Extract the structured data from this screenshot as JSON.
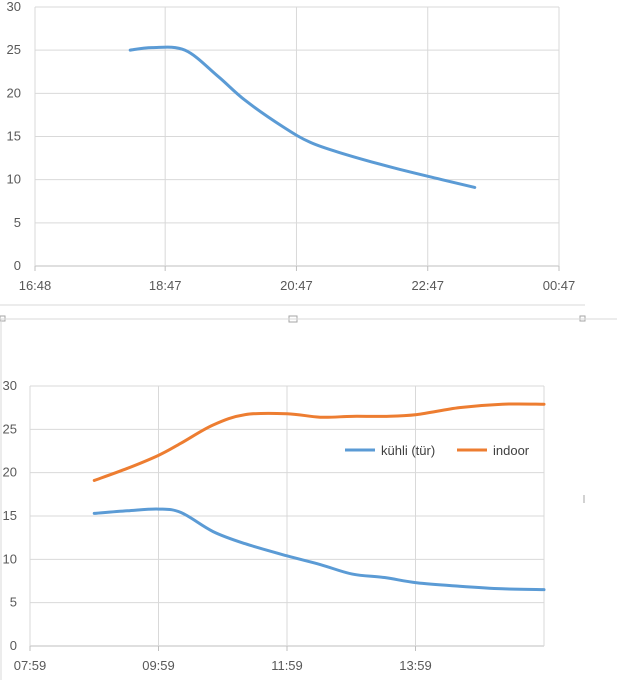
{
  "chart_data": [
    {
      "type": "line",
      "title": "",
      "xlabel": "",
      "ylabel": "",
      "x_axis": "time",
      "xlim": [
        "16:48",
        "00:47"
      ],
      "ylim": [
        0,
        30
      ],
      "y_ticks": [
        0,
        5,
        10,
        15,
        20,
        25,
        30
      ],
      "x_ticks": [
        "16:48",
        "18:47",
        "20:47",
        "22:47",
        "00:47"
      ],
      "grid": true,
      "legend": "none",
      "colors": [
        "#5b9bd5"
      ],
      "series": [
        {
          "x": [
            "18:15",
            "18:35",
            "19:05",
            "19:35",
            "20:00",
            "20:35",
            "21:00",
            "21:30",
            "22:15",
            "23:00",
            "23:30"
          ],
          "values": [
            25.0,
            25.3,
            25.0,
            22.0,
            19.2,
            16.1,
            14.3,
            13.0,
            11.4,
            10.0,
            9.1
          ]
        }
      ]
    },
    {
      "type": "line",
      "title": "",
      "xlabel": "",
      "ylabel": "",
      "x_axis": "time",
      "xlim": [
        "07:59",
        "15:59"
      ],
      "ylim": [
        0,
        30
      ],
      "y_ticks": [
        0,
        5,
        10,
        15,
        20,
        25,
        30
      ],
      "x_ticks": [
        "07:59",
        "09:59",
        "11:59",
        "13:59"
      ],
      "grid": true,
      "legend": "right",
      "colors": [
        "#5b9bd5",
        "#ed7d31"
      ],
      "series": [
        {
          "name": "kühli (tür)",
          "x": [
            "08:59",
            "09:30",
            "09:59",
            "10:20",
            "10:50",
            "11:20",
            "11:59",
            "12:30",
            "13:00",
            "13:30",
            "14:00",
            "14:40",
            "15:20",
            "15:59"
          ],
          "values": [
            15.3,
            15.6,
            15.8,
            15.4,
            13.2,
            11.8,
            10.4,
            9.4,
            8.3,
            7.9,
            7.3,
            6.9,
            6.6,
            6.5
          ]
        },
        {
          "name": "indoor",
          "x": [
            "08:59",
            "09:30",
            "09:59",
            "10:20",
            "10:50",
            "11:20",
            "11:59",
            "12:30",
            "13:00",
            "13:30",
            "14:00",
            "14:40",
            "15:20",
            "15:59"
          ],
          "values": [
            19.1,
            20.5,
            22.0,
            23.4,
            25.5,
            26.7,
            26.8,
            26.4,
            26.5,
            26.5,
            26.7,
            27.5,
            27.9,
            27.9
          ]
        }
      ]
    }
  ]
}
